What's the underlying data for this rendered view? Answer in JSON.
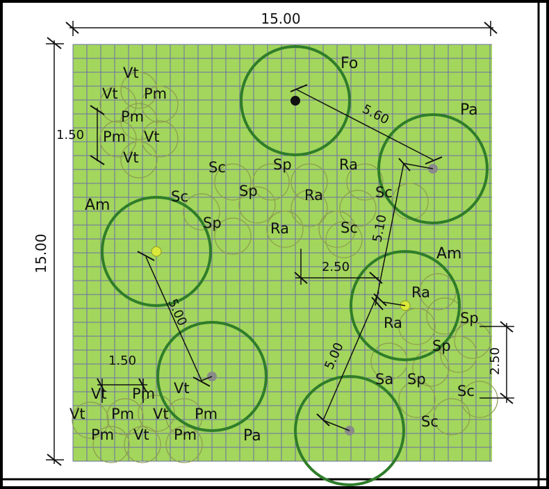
{
  "plan": {
    "colors": {
      "background": "#a3d65c",
      "grid": "#6b6fa6",
      "tree_circle": "#2f7d2a",
      "shrub_circle": "#8a9a50",
      "dim_line": "#111111",
      "frame": "#000000"
    },
    "dimensions": {
      "width": "15.00",
      "height": "15.00",
      "spacing_top_left": "1.50",
      "spacing_bottom_left": "1.50",
      "offset_center": "2.50",
      "spacing_right": "2.50",
      "dist_fo_pa": "5.60",
      "dist_pa_am": "5.10",
      "dist_am_pa": "5.00",
      "dist_am_pa_right": "5.00"
    },
    "trees": {
      "fo": "Fo",
      "pa_right": "Pa",
      "am_left": "Am",
      "am_right": "Am",
      "pa_bottom": "Pa"
    },
    "shrubs": {
      "tl_vt1": "Vt",
      "tl_vt2": "Vt",
      "tl_pm1": "Pm",
      "tl_pm2": "Pm",
      "tl_pm3": "Pm",
      "tl_vt3": "Vt",
      "tl_vt4": "Vt",
      "c_sc1": "Sc",
      "c_sp1": "Sp",
      "c_ra1": "Ra",
      "c_sc2": "Sc",
      "c_sp2": "Sp",
      "c_ra2": "Ra",
      "c_sc3": "Sc",
      "c_sp3": "Sp",
      "c_ra3": "Ra",
      "c_sc4": "Sc",
      "r_ra1": "Ra",
      "r_ra2": "Ra",
      "r_sp1": "Sp",
      "r_sp2": "Sp",
      "r_sa": "Sa",
      "r_sp3": "Sp",
      "r_sc1": "Sc",
      "r_sc2": "Sc",
      "bl_vt1": "Vt",
      "bl_pm1": "Pm",
      "bl_vt2": "Vt",
      "bl_vt3": "Vt",
      "bl_pm2": "Pm",
      "bl_vt4": "Vt",
      "bl_pm3": "Pm",
      "bl_pm4": "Pm",
      "bl_vt5": "Vt",
      "bl_pm5": "Pm"
    }
  }
}
